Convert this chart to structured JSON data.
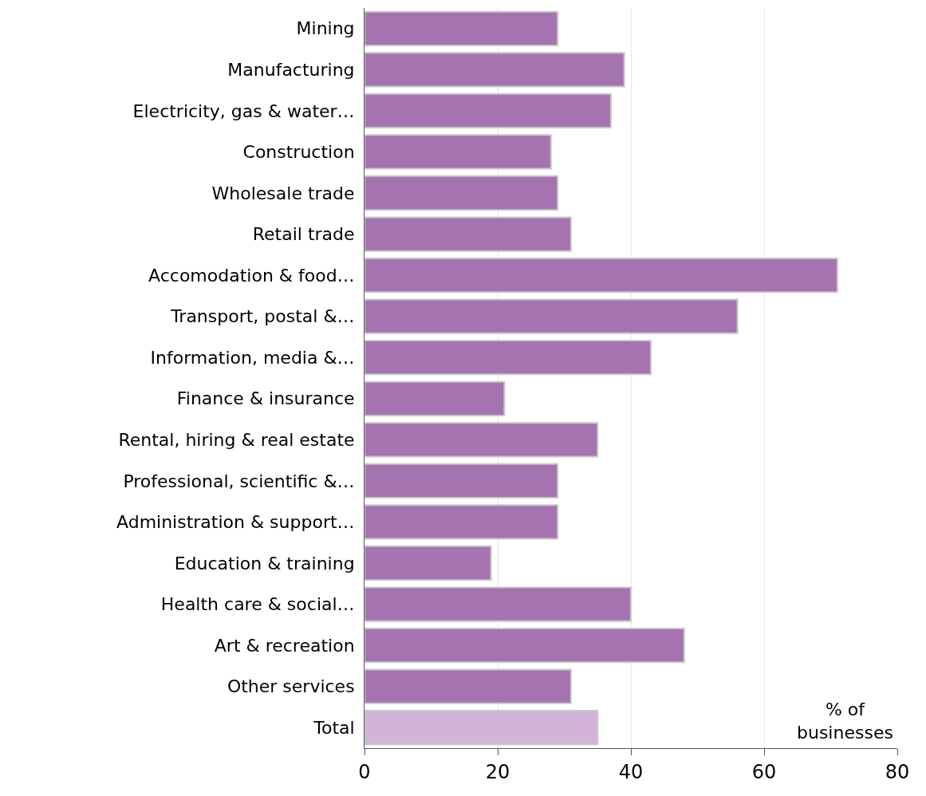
{
  "chart_data": {
    "type": "bar",
    "orientation": "horizontal",
    "categories": [
      "Mining",
      "Manufacturing",
      "Electricity, gas & water…",
      "Construction",
      "Wholesale trade",
      "Retail trade",
      "Accomodation & food…",
      "Transport, postal &…",
      "Information, media &…",
      "Finance & insurance",
      "Rental, hiring & real estate",
      "Professional, scientific &…",
      "Administration & support…",
      "Education & training",
      "Health care & social…",
      "Art & recreation",
      "Other services",
      "Total"
    ],
    "values": [
      29,
      39,
      37,
      28,
      29,
      31,
      71,
      56,
      43,
      21,
      35,
      29,
      29,
      19,
      40,
      48,
      31,
      35
    ],
    "colors": [
      "#a673b1",
      "#a673b1",
      "#a673b1",
      "#a673b1",
      "#a673b1",
      "#a673b1",
      "#a673b1",
      "#a673b1",
      "#a673b1",
      "#a673b1",
      "#a673b1",
      "#a673b1",
      "#a673b1",
      "#a673b1",
      "#a673b1",
      "#a673b1",
      "#a673b1",
      "#d2b4d9"
    ],
    "xlim": [
      0,
      80
    ],
    "xticks": [
      0,
      20,
      40,
      60,
      80
    ],
    "grid": "x",
    "annotations": [
      "% of\nbusinesses"
    ]
  }
}
